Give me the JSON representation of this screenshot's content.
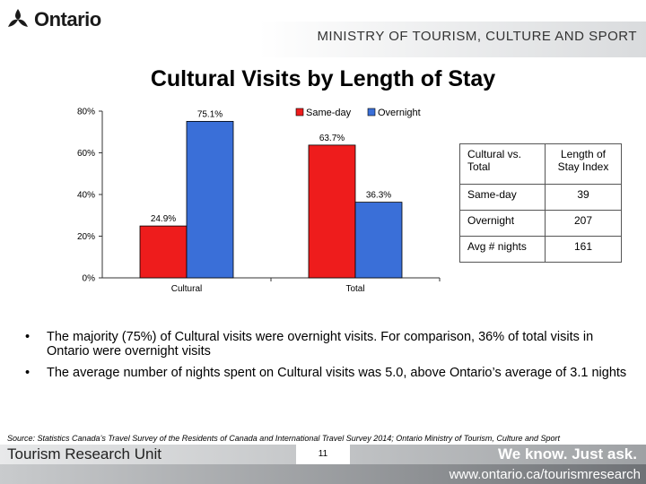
{
  "header": {
    "logo_text": "Ontario",
    "ministry": "MINISTRY OF TOURISM, CULTURE AND SPORT"
  },
  "title": "Cultural Visits by Length of Stay",
  "chart_data": {
    "type": "bar",
    "categories": [
      "Cultural",
      "Total"
    ],
    "series": [
      {
        "name": "Same-day",
        "values": [
          24.9,
          63.7
        ],
        "labels": [
          "24.9%",
          "63.7%"
        ],
        "color": "#ee1c1c"
      },
      {
        "name": "Overnight",
        "values": [
          75.1,
          36.3
        ],
        "labels": [
          "75.1%",
          "36.3%"
        ],
        "color": "#3a6fd8"
      }
    ],
    "ylim": [
      0,
      80
    ],
    "yticks": [
      0,
      20,
      40,
      60,
      80
    ],
    "ytick_labels": [
      "0%",
      "20%",
      "40%",
      "60%",
      "80%"
    ],
    "legend_position": "top",
    "grid": false
  },
  "table": {
    "headers": [
      "Cultural vs. Total",
      "Length of Stay Index"
    ],
    "rows": [
      {
        "label": "Same-day",
        "value": "39"
      },
      {
        "label": "Overnight",
        "value": "207"
      },
      {
        "label": "Avg # nights",
        "value": "161"
      }
    ]
  },
  "bullets": [
    "The majority (75%) of Cultural visits were overnight visits.  For comparison, 36% of total visits in Ontario were overnight visits",
    "The average number of nights spent on Cultural visits was 5.0, above Ontario’s average of 3.1 nights"
  ],
  "bullet_symbol": "•",
  "source": "Source: Statistics Canada’s Travel Survey of the Residents of Canada and International Travel Survey 2014; Ontario Ministry of Tourism, Culture and Sport",
  "footer": {
    "unit": "Tourism Research Unit",
    "page": "11",
    "tagline": "We know. Just ask.",
    "url": "www.ontario.ca/tourismresearch"
  }
}
